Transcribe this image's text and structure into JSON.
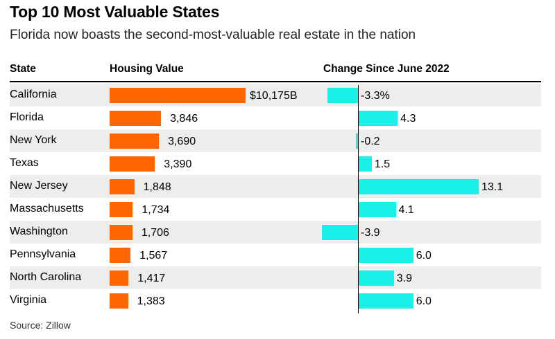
{
  "chart_data": {
    "type": "bar",
    "title": "Top 10 Most Valuable States",
    "subtitle": "Florida now boasts the second-most-valuable real estate in the nation",
    "columns": [
      "State",
      "Housing Value",
      "Change Since June 2022"
    ],
    "categories": [
      "California",
      "Florida",
      "New York",
      "Texas",
      "New Jersey",
      "Massachusetts",
      "Washington",
      "Pennsylvania",
      "North Carolina",
      "Virginia"
    ],
    "series": [
      {
        "name": "Housing Value",
        "values": [
          10175,
          3846,
          3690,
          3390,
          1848,
          1734,
          1706,
          1567,
          1417,
          1383
        ],
        "labels": [
          "$10,175B",
          "3,846",
          "3,690",
          "3,390",
          "1,848",
          "1,734",
          "1,706",
          "1,567",
          "1,417",
          "1,383"
        ],
        "color": "#ff6600"
      },
      {
        "name": "Change Since June 2022",
        "values": [
          -3.3,
          4.3,
          -0.2,
          1.5,
          13.1,
          4.1,
          -3.9,
          6.0,
          3.9,
          6.0
        ],
        "labels": [
          "-3.3%",
          "4.3",
          "-0.2",
          "1.5",
          "13.1",
          "4.1",
          "-3.9",
          "6.0",
          "3.9",
          "6.0"
        ],
        "color": "#1af0e8"
      }
    ],
    "source": "Source: Zillow"
  }
}
